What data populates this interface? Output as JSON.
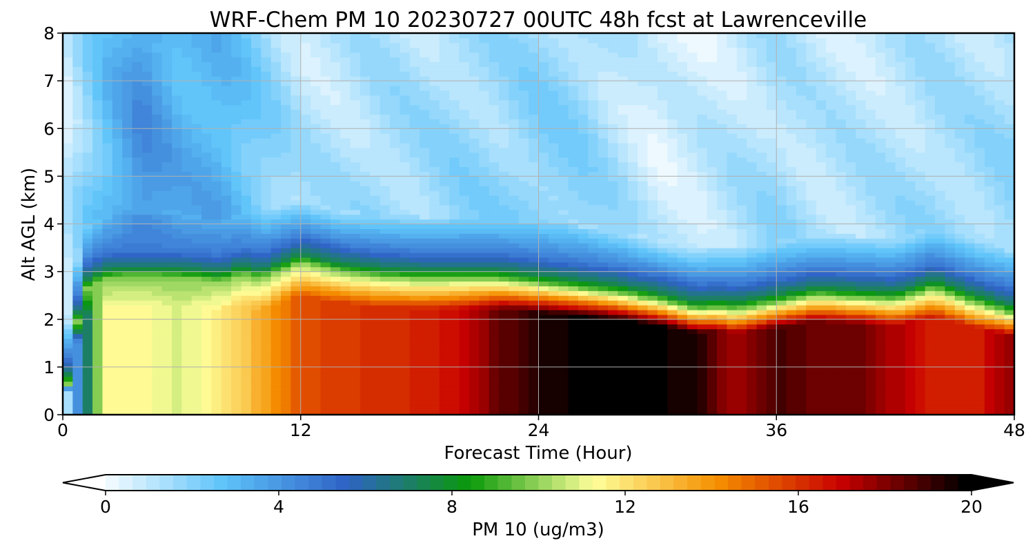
{
  "chart_data": {
    "type": "heatmap",
    "title": "WRF-Chem PM 10  20230727 00UTC 48h fcst at Lawrenceville",
    "xlabel": "Forecast Time (Hour)",
    "ylabel": "Alt AGL (km)",
    "xlim": [
      0,
      48
    ],
    "ylim": [
      0,
      8
    ],
    "xticks": [
      0,
      12,
      24,
      36,
      48
    ],
    "yticks": [
      0,
      1,
      2,
      3,
      4,
      5,
      6,
      7,
      8
    ],
    "grid": true,
    "colorbar": {
      "label": "PM 10  (ug/m3)",
      "range": [
        0,
        20
      ],
      "ticks": [
        0,
        4,
        8,
        12,
        16,
        20
      ],
      "extend": "both",
      "colors": [
        "#ffffff",
        "#5ec4fa",
        "#2f62c6",
        "#0a9a0a",
        "#ffff9a",
        "#f58f00",
        "#c80000",
        "#000000"
      ]
    },
    "surface_layer": {
      "description_fields": [
        "hour",
        "layer_top_km",
        "concentration_below_top"
      ],
      "layer_top_km": [
        [
          0,
          0.0
        ],
        [
          1,
          2.6
        ],
        [
          2,
          2.85
        ],
        [
          3,
          2.9
        ],
        [
          5,
          2.9
        ],
        [
          7,
          2.85
        ],
        [
          8,
          2.8
        ],
        [
          9,
          2.95
        ],
        [
          10,
          2.85
        ],
        [
          12,
          3.2
        ],
        [
          14,
          3.0
        ],
        [
          16,
          2.9
        ],
        [
          18,
          2.85
        ],
        [
          20,
          2.85
        ],
        [
          22,
          2.85
        ],
        [
          24,
          2.75
        ],
        [
          26,
          2.65
        ],
        [
          28,
          2.55
        ],
        [
          30,
          2.4
        ],
        [
          32,
          2.2
        ],
        [
          33,
          2.25
        ],
        [
          34,
          2.2
        ],
        [
          36,
          2.35
        ],
        [
          38,
          2.5
        ],
        [
          40,
          2.45
        ],
        [
          42,
          2.4
        ],
        [
          44,
          2.65
        ],
        [
          46,
          2.35
        ],
        [
          48,
          2.1
        ]
      ]
    },
    "concentration_samples": {
      "hours": [
        0,
        2,
        4,
        6,
        8,
        10,
        12,
        14,
        16,
        18,
        20,
        22,
        24,
        26,
        28,
        30,
        32,
        34,
        36,
        38,
        40,
        42,
        44,
        46,
        48
      ],
      "layer_core_value": [
        0,
        11.5,
        11.5,
        11.0,
        12.0,
        13.5,
        15.5,
        16.0,
        16.2,
        16.5,
        17.0,
        18.5,
        19.5,
        20,
        20,
        20,
        19.5,
        17.5,
        19.0,
        18.5,
        18.5,
        17.5,
        16.5,
        16.5,
        18.0
      ],
      "aloft_value": [
        1.2,
        3.0,
        4.5,
        3.5,
        3.5,
        2.5,
        1.5,
        1.5,
        1.8,
        1.8,
        2.0,
        2.0,
        2.3,
        2.2,
        1.6,
        1.0,
        1.2,
        1.5,
        1.8,
        1.5,
        1.5,
        1.6,
        1.8,
        1.8,
        2.0
      ]
    }
  }
}
